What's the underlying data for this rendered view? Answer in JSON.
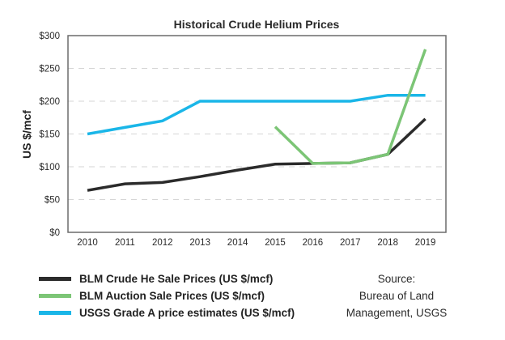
{
  "chart_data": {
    "type": "line",
    "title": "Historical Crude Helium Prices",
    "xlabel": "",
    "ylabel": "US $/mcf",
    "x": [
      2010,
      2011,
      2012,
      2013,
      2014,
      2015,
      2016,
      2017,
      2018,
      2019
    ],
    "x_tick_labels": [
      "2010",
      "2011",
      "2012",
      "2013",
      "2014",
      "2015",
      "2016",
      "2017",
      "2018",
      "2019"
    ],
    "ylim": [
      0,
      300
    ],
    "y_ticks": [
      0,
      50,
      100,
      150,
      200,
      250,
      300
    ],
    "y_tick_labels": [
      "$0",
      "$50",
      "$100",
      "$150",
      "$200",
      "$250",
      "$300"
    ],
    "grid": "horizontal dashed",
    "legend_position": "bottom-left",
    "series": [
      {
        "name": "BLM Crude He Sale Prices (US $/mcf)",
        "color": "#2b2b2b",
        "values": [
          64,
          74,
          76,
          85,
          95,
          104,
          105,
          106,
          119,
          173
        ]
      },
      {
        "name": "BLM Auction Sale Prices (US $/mcf)",
        "color": "#7cc576",
        "values": [
          null,
          null,
          null,
          null,
          null,
          161,
          105,
          106,
          119,
          279
        ]
      },
      {
        "name": "USGS Grade A price estimates (US $/mcf)",
        "color": "#1ab6e8",
        "values": [
          150,
          160,
          170,
          200,
          200,
          200,
          200,
          200,
          209,
          209
        ]
      }
    ]
  },
  "source": {
    "line1": "Source:",
    "line2": "Bureau of Land",
    "line3": "Management, USGS"
  }
}
